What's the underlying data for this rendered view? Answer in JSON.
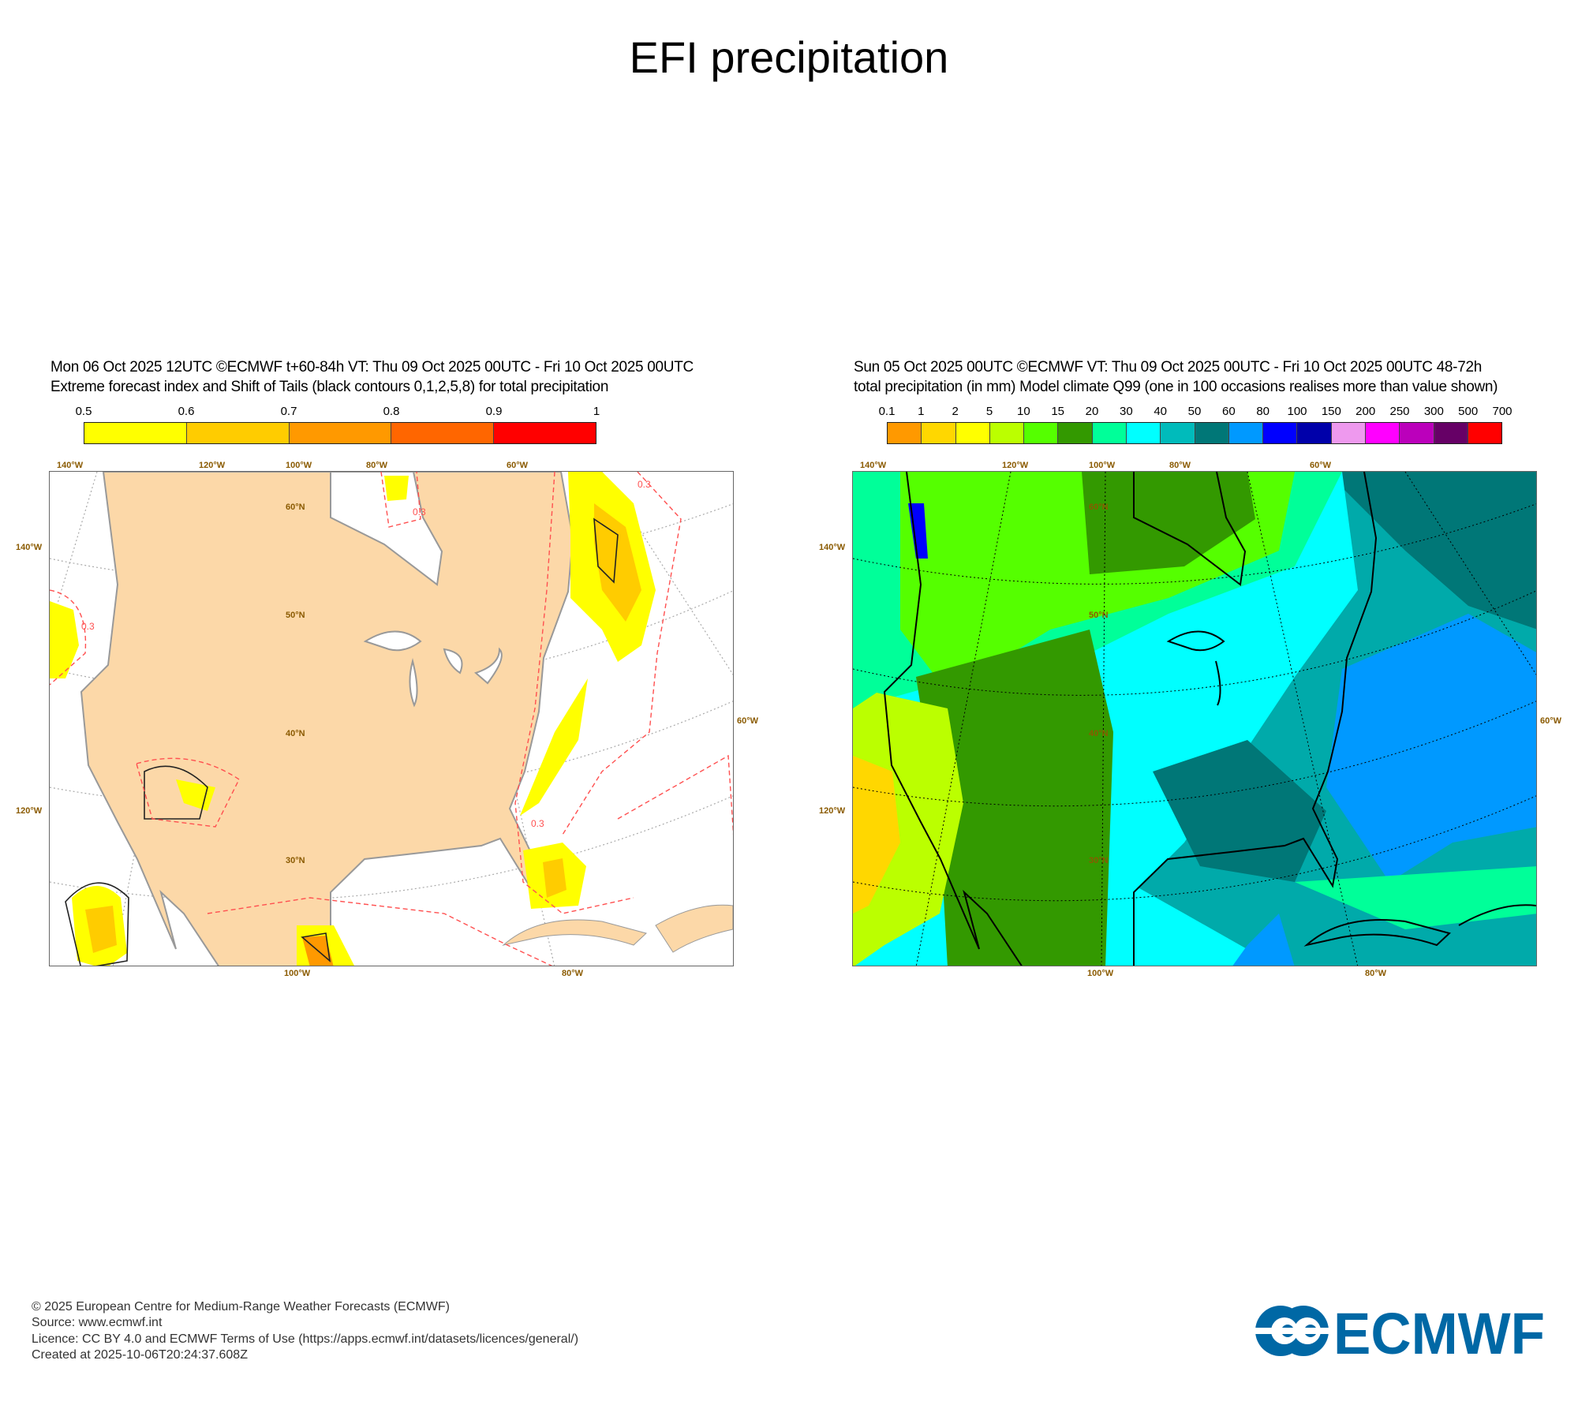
{
  "title": "EFI precipitation",
  "left_panel": {
    "header_line1": "Mon 06 Oct 2025 12UTC ©ECMWF t+60-84h  VT: Thu 09 Oct 2025 00UTC - Fri 10 Oct 2025 00UTC",
    "header_line2": "Extreme forecast index and Shift of Tails (black contours 0,1,2,5,8) for total precipitation",
    "colorbar": {
      "ticks": [
        "0.5",
        "0.6",
        "0.7",
        "0.8",
        "0.9",
        "1"
      ],
      "colors": [
        "#ffff00",
        "#ffcc00",
        "#ff9900",
        "#ff6600",
        "#ff0000"
      ]
    },
    "lon_labels_top": [
      "140°W",
      "120°W",
      "100°W",
      "80°W",
      "60°W"
    ],
    "lon_labels_left": [
      "140°W",
      "120°W"
    ],
    "lon_labels_right": [
      "60°W"
    ],
    "lon_labels_bottom": [
      "100°W",
      "80°W"
    ],
    "lat_labels": [
      "60°N",
      "50°N",
      "40°N",
      "30°N"
    ],
    "contour_label": "0.3",
    "land_color": "#fcd8a8"
  },
  "right_panel": {
    "header_line1": "Sun 05 Oct 2025 00UTC ©ECMWF VT: Thu 09 Oct 2025 00UTC - Fri 10 Oct 2025 00UTC   48-72h",
    "header_line2": "total precipitation (in mm)  Model climate Q99 (one in 100 occasions realises more than value shown)",
    "colorbar": {
      "ticks": [
        "0.1",
        "1",
        "2",
        "5",
        "10",
        "15",
        "20",
        "30",
        "40",
        "50",
        "60",
        "80",
        "100",
        "150",
        "200",
        "250",
        "300",
        "500",
        "700"
      ],
      "colors": [
        "#ff9900",
        "#ffd700",
        "#ffff00",
        "#bbff00",
        "#55ff00",
        "#339900",
        "#00ff99",
        "#00ffff",
        "#00bbbb",
        "#007777",
        "#0099ff",
        "#0000ff",
        "#0000aa",
        "#ee99ee",
        "#ff00ff",
        "#bb00bb",
        "#660066",
        "#ff0000"
      ]
    },
    "lon_labels_top": [
      "140°W",
      "120°W",
      "100°W",
      "80°W",
      "60°W"
    ],
    "lon_labels_left": [
      "140°W",
      "120°W"
    ],
    "lon_labels_right": [
      "60°W"
    ],
    "lon_labels_bottom": [
      "100°W",
      "80°W"
    ],
    "lat_labels": [
      "60°N",
      "50°N",
      "40°N",
      "30°N"
    ]
  },
  "footer": {
    "copyright": "© 2025 European Centre for Medium-Range Weather Forecasts (ECMWF)",
    "source": "Source: www.ecmwf.int",
    "licence": "Licence: CC BY 4.0 and ECMWF Terms of Use (https://apps.ecmwf.int/datasets/licences/general/)",
    "created": "Created at 2025-10-06T20:24:37.608Z",
    "logo_text": "ECMWF",
    "logo_color": "#0068a5"
  }
}
